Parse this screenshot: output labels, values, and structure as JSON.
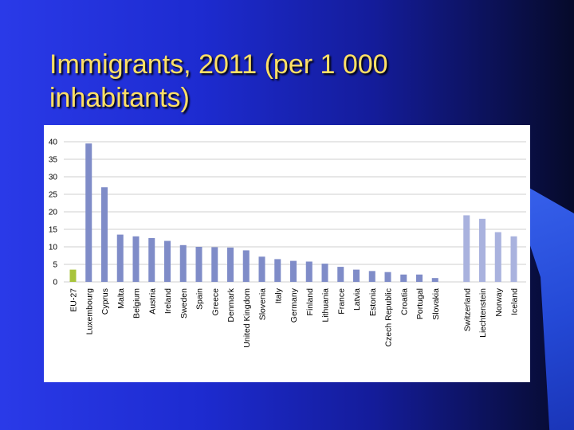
{
  "slide": {
    "title": "Immigrants, 2011 (per 1 000 inhabitants)"
  },
  "colors": {
    "eu_bar": "#a8c43c",
    "member_bar": "#7f8cc8",
    "efta_bar": "#a9b2de",
    "gridline": "#cfcfcf",
    "title": "#ffe066"
  },
  "chart_data": {
    "type": "bar",
    "title": "",
    "xlabel": "",
    "ylabel": "",
    "ylim": [
      0,
      40
    ],
    "yticks": [
      0,
      5,
      10,
      15,
      20,
      25,
      30,
      35,
      40
    ],
    "grid": true,
    "categories": [
      "EU-27",
      "Luxembourg",
      "Cyprus",
      "Malta",
      "Belgium",
      "Austria",
      "Ireland",
      "Sweden",
      "Spain",
      "Greece",
      "Denmark",
      "United Kingdom",
      "Slovenia",
      "Italy",
      "Germany",
      "Finland",
      "Lithuania",
      "France",
      "Latvia",
      "Estonia",
      "Czech Republic",
      "Croatia",
      "Portugal",
      "Slovakia",
      "Switzerland",
      "Liechtenstein",
      "Norway",
      "Iceland"
    ],
    "values": [
      3.5,
      39.5,
      27,
      13.5,
      13,
      12.5,
      11.7,
      10.5,
      10,
      9.9,
      9.8,
      9,
      7.2,
      6.5,
      6,
      5.8,
      5.2,
      4.3,
      3.5,
      3.1,
      2.8,
      2.1,
      2.1,
      1.1,
      19,
      18,
      14.2,
      13
    ],
    "groups": [
      "eu",
      "member",
      "member",
      "member",
      "member",
      "member",
      "member",
      "member",
      "member",
      "member",
      "member",
      "member",
      "member",
      "member",
      "member",
      "member",
      "member",
      "member",
      "member",
      "member",
      "member",
      "member",
      "member",
      "member",
      "efta",
      "efta",
      "efta",
      "efta"
    ]
  }
}
